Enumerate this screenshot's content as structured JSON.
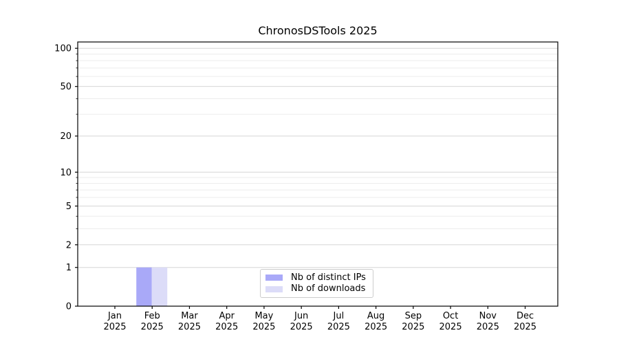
{
  "figure": {
    "background": "#ffffff"
  },
  "chart_data": {
    "type": "bar",
    "title": "ChronosDSTools 2025",
    "categories": [
      "Jan",
      "Feb",
      "Mar",
      "Apr",
      "May",
      "Jun",
      "Jul",
      "Aug",
      "Sep",
      "Oct",
      "Nov",
      "Dec"
    ],
    "category_year": "2025",
    "series": [
      {
        "name": "Nb of distinct IPs",
        "color": "#a9a9f8",
        "values": [
          0,
          1,
          0,
          0,
          0,
          0,
          0,
          0,
          0,
          0,
          0,
          0
        ]
      },
      {
        "name": "Nb of downloads",
        "color": "#dcdcf8",
        "values": [
          0,
          1,
          0,
          0,
          0,
          0,
          0,
          0,
          0,
          0,
          0,
          0
        ]
      }
    ],
    "xlabel": "",
    "ylabel": "",
    "yscale": "log1p",
    "ylim": [
      0,
      112
    ],
    "yticks": [
      0,
      1,
      2,
      5,
      10,
      20,
      50,
      100
    ],
    "yticks_minor": [
      3,
      4,
      6,
      7,
      8,
      9,
      30,
      40,
      60,
      70,
      80,
      90
    ],
    "grid": "horizontal",
    "legend_position": "lower center"
  },
  "colors": {
    "grid_major": "#d6d6d6",
    "grid_minor": "#ececec",
    "axis": "#000000",
    "tick_text": "#000000",
    "legend_border": "#cccccc",
    "legend_bg": "#ffffff"
  }
}
